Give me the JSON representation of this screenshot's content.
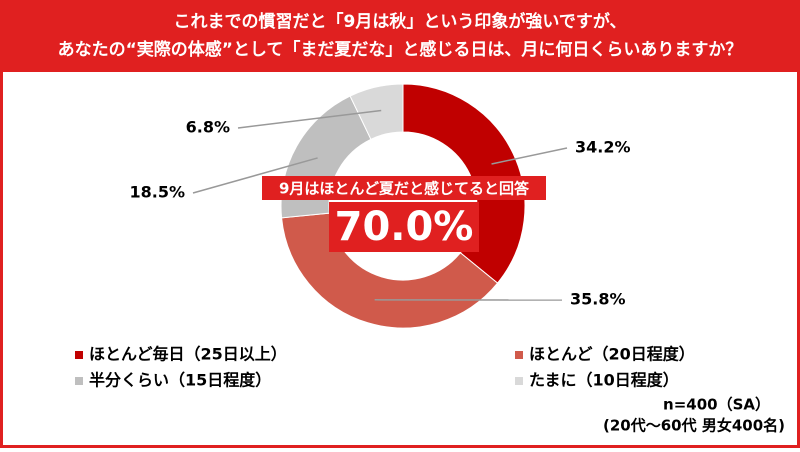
{
  "chart_data": {
    "type": "donut",
    "title": [
      "これまでの慣習だと「9月は秋」という印象が強いですが、",
      "あなたの“実際の体感”として「まだ夏だな」と感じる日は、月に何日くらいありますか？"
    ],
    "series": [
      {
        "name": "ほとんど毎日（25日以上）",
        "color": "#c00000",
        "value": 34.2,
        "value_label": "34.2%"
      },
      {
        "name": "ほとんど（20日程度）",
        "color": "#d05a4b",
        "value": 35.8,
        "value_label": "35.8%"
      },
      {
        "name": "半分くらい（15日程度）",
        "color": "#bfbfbf",
        "value": 18.5,
        "value_label": "18.5%"
      },
      {
        "name": "たまに（10日程度）",
        "color": "#d9d9d9",
        "value": 6.8,
        "value_label": "6.8%"
      }
    ],
    "center_caption": "9月はほとんど夏だと感じてると回答",
    "center_value": "70.0%",
    "notes": [
      "n=400（SA）",
      "(20代～60代 男女400名)"
    ]
  }
}
